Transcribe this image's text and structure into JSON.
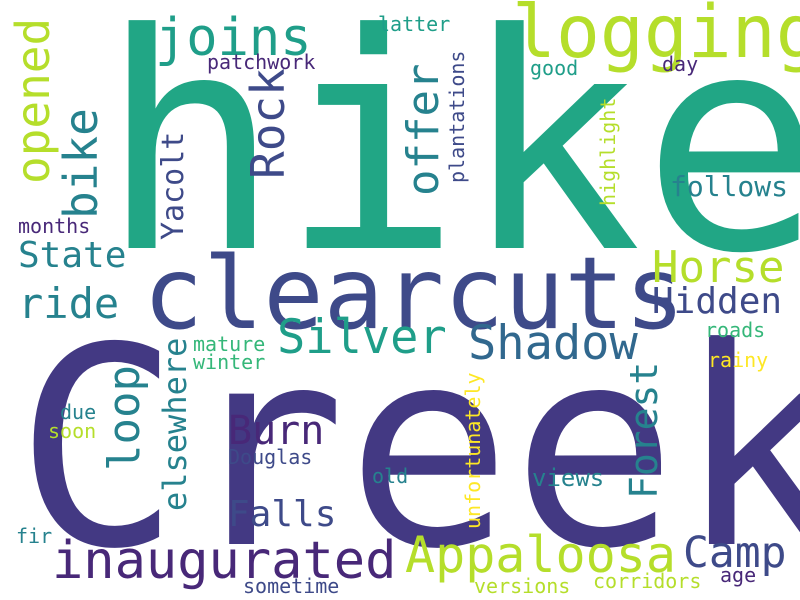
{
  "words": {
    "hike": "hike",
    "creek": "Creek",
    "clearcuts": "clearcuts",
    "logging": "logging",
    "appaloosa": "Appaloosa",
    "inaugurated": "inaugurated",
    "shadow": "Shadow",
    "silver": "Silver",
    "horse": "Horse",
    "hidden": "Hidden",
    "camp": "Camp",
    "rock": "Rock",
    "joins": "joins",
    "opened": "opened",
    "bike": "bike",
    "ride": "ride",
    "state": "State",
    "offer": "offer",
    "follows": "follows",
    "yacolt": "Yacolt",
    "loop": "loop",
    "forest": "Forest",
    "burn": "Burn",
    "falls": "Falls",
    "elsewhere": "elsewhere",
    "plantations": "plantations",
    "patchwork": "patchwork",
    "latter": "latter",
    "good": "good",
    "day": "day",
    "highlight": "highlight",
    "months": "months",
    "mature": "mature",
    "winter": "winter",
    "roads": "roads",
    "rainy": "rainy",
    "due": "due",
    "soon": "soon",
    "douglas": "Douglas",
    "unfortunately": "unfortunately",
    "old": "old",
    "views": "views",
    "fir": "fir",
    "sometime": "sometime",
    "versions": "versions",
    "corridors": "corridors",
    "age": "age"
  },
  "colors": {
    "dark_purple": "#482878",
    "indigo": "#3e4a89",
    "blue": "#31688e",
    "teal": "#26828e",
    "green_teal": "#1f9e89",
    "green": "#35b779",
    "lime": "#b5de2b",
    "yellow": "#fde725"
  }
}
